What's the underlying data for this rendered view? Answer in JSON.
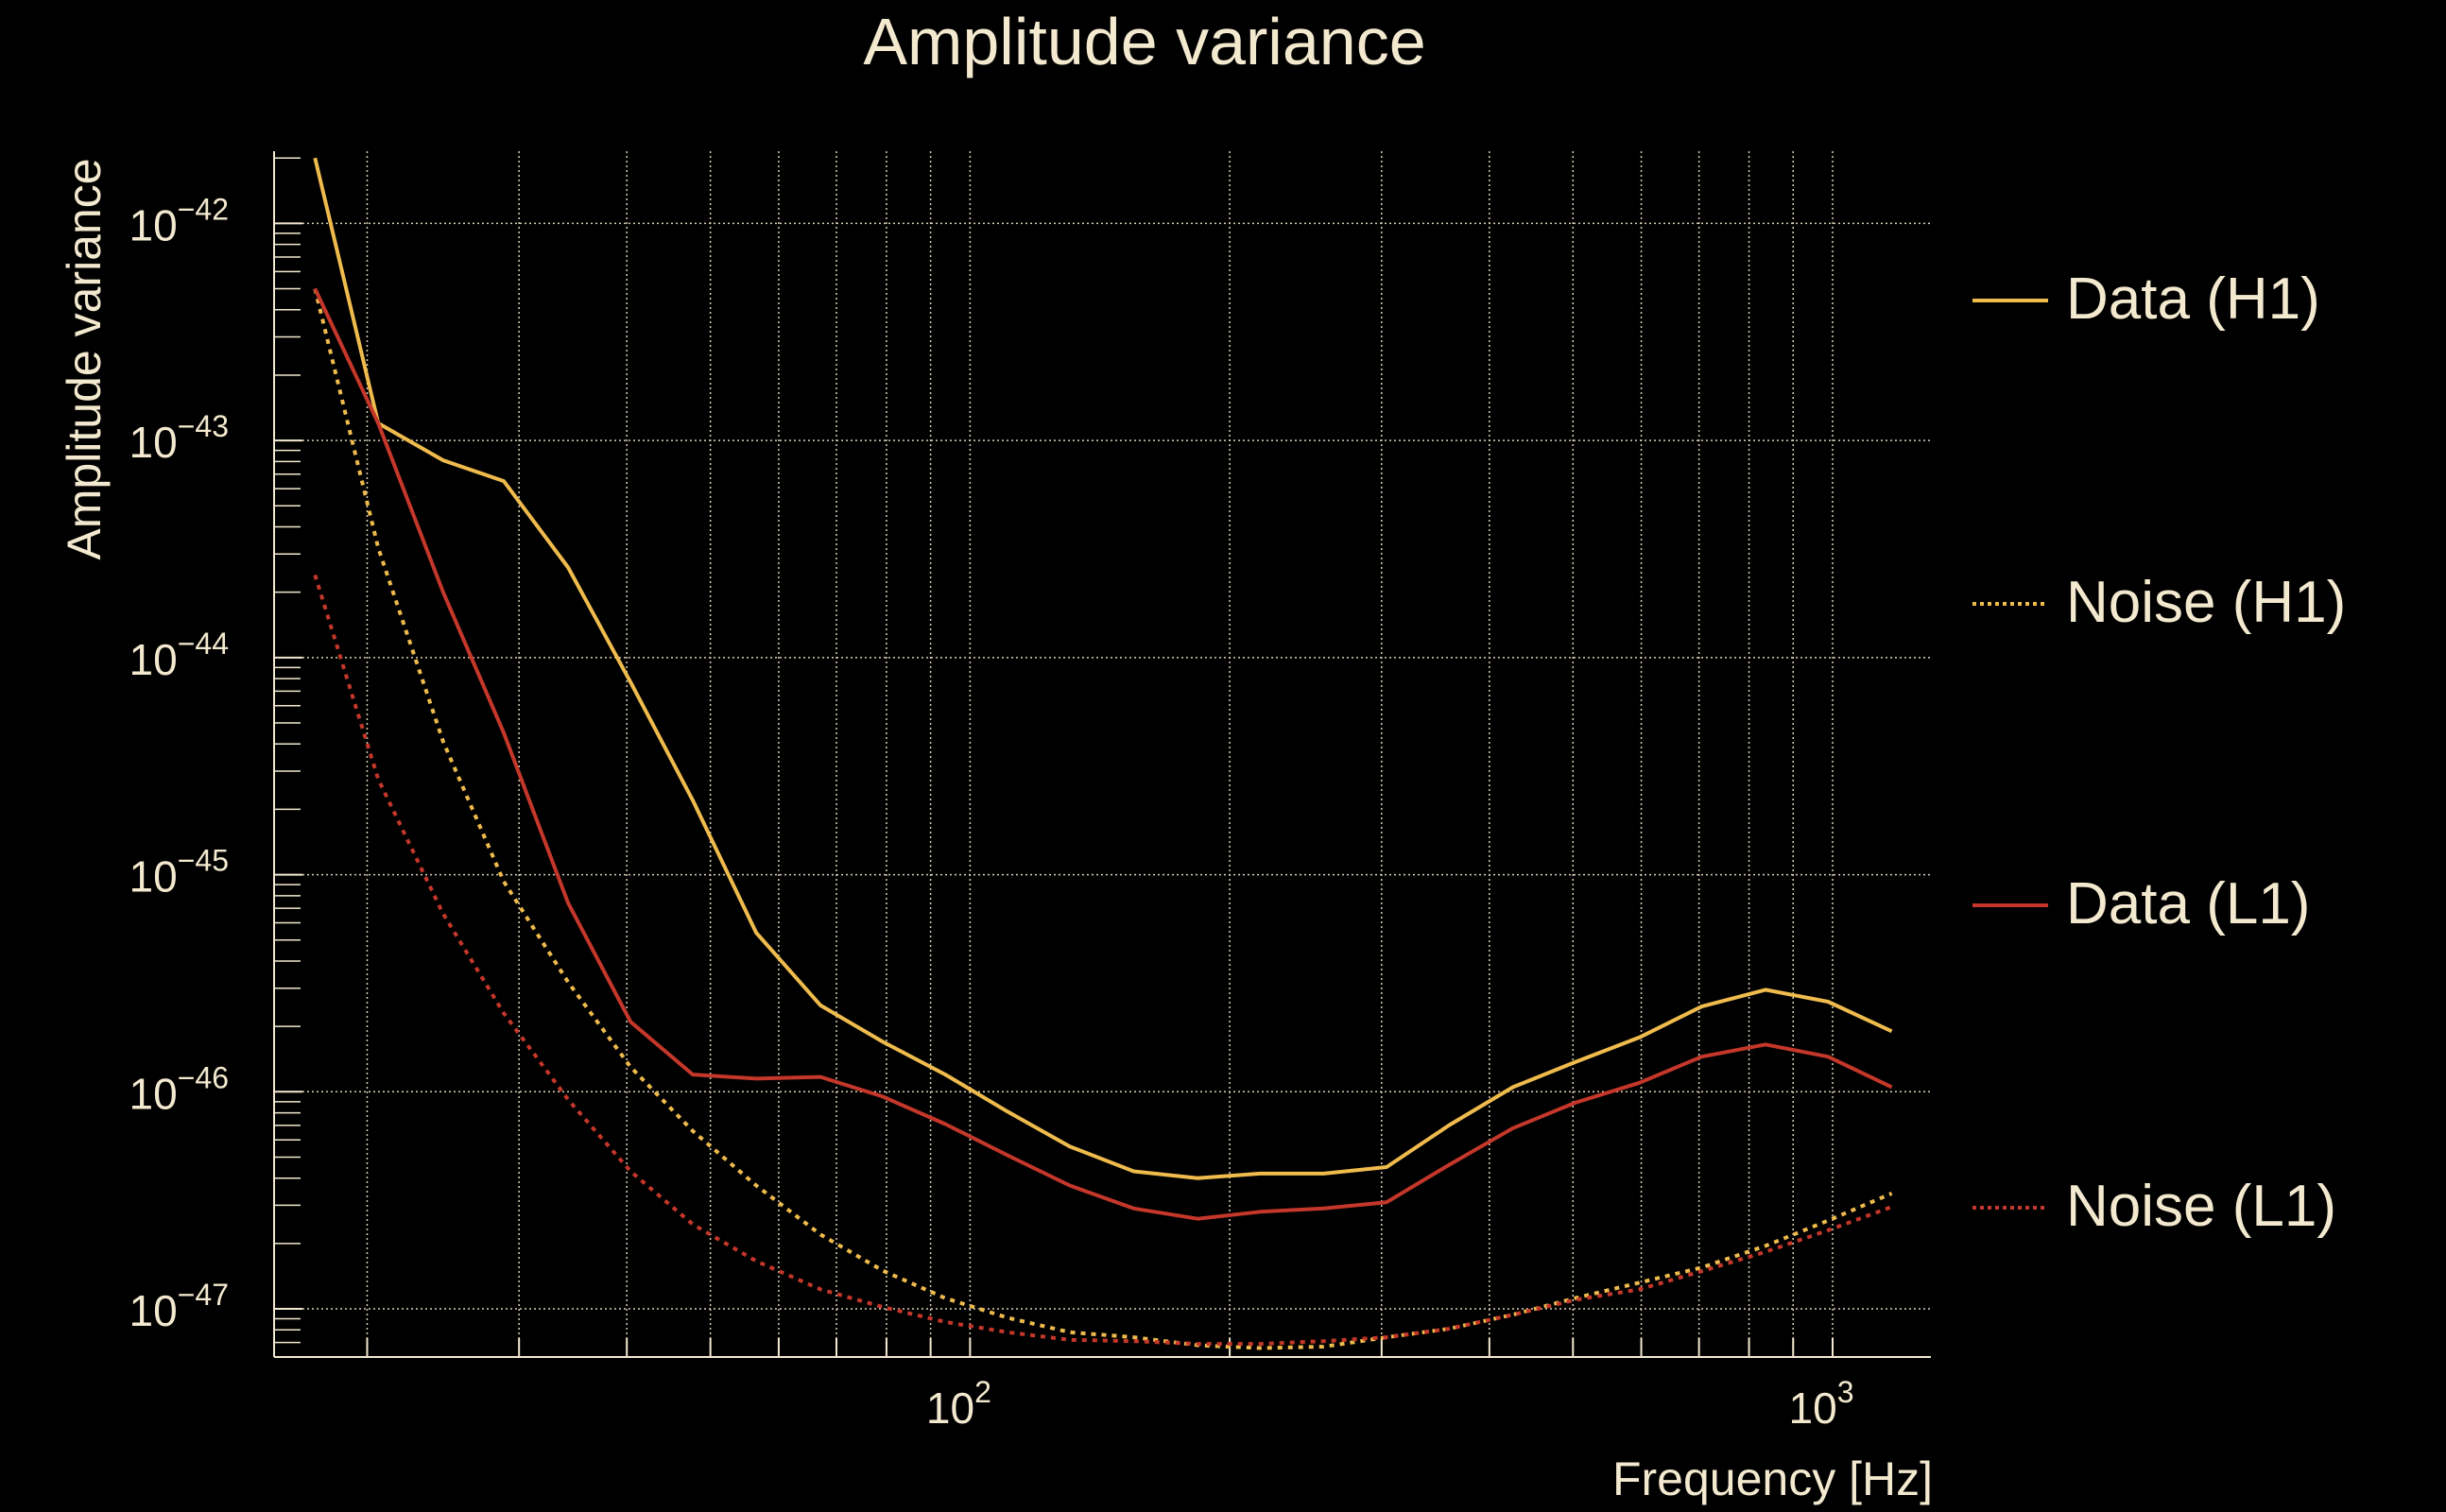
{
  "chart_data": {
    "type": "line",
    "title": "Amplitude variance",
    "xlabel": "Frequency [Hz]",
    "ylabel": "Amplitude variance",
    "xscale": "log",
    "yscale": "log",
    "xlim": [
      15.6,
      1300
    ],
    "ylim": [
      6e-48,
      2.15e-42
    ],
    "grid": true,
    "legend_position": "right",
    "x_ticks": [
      {
        "value": 100,
        "base": "10",
        "exp": "2"
      },
      {
        "value": 1000,
        "base": "10",
        "exp": "3"
      }
    ],
    "x_minor_ticks": [
      20,
      30,
      40,
      50,
      60,
      70,
      80,
      90,
      200,
      300,
      400,
      500,
      600,
      700,
      800,
      900
    ],
    "y_ticks": [
      {
        "value": 1e-42,
        "base": "10",
        "exp": "−42"
      },
      {
        "value": 1e-43,
        "base": "10",
        "exp": "−43"
      },
      {
        "value": 1e-44,
        "base": "10",
        "exp": "−44"
      },
      {
        "value": 1e-45,
        "base": "10",
        "exp": "−45"
      },
      {
        "value": 1e-46,
        "base": "10",
        "exp": "−46"
      },
      {
        "value": 1e-47,
        "base": "10",
        "exp": "−47"
      }
    ],
    "x": [
      17.4,
      20.6,
      24.5,
      28.8,
      34.2,
      40.4,
      47.7,
      56.5,
      67.1,
      79.2,
      93.6,
      110.5,
      130.5,
      154.8,
      183.7,
      217,
      257,
      304,
      359,
      426,
      503,
      597,
      705,
      836,
      988,
      1171
    ],
    "series": [
      {
        "name": "Data (H1)",
        "color": "#efbb4d",
        "style": "solid",
        "values": [
          2e-42,
          1.2e-43,
          8.1e-44,
          6.5e-44,
          2.6e-44,
          7.7e-45,
          2.2e-45,
          5.4e-46,
          2.5e-46,
          1.7e-46,
          1.2e-46,
          8.1e-47,
          5.6e-47,
          4.3e-47,
          4e-47,
          4.2e-47,
          4.2e-47,
          4.5e-47,
          7e-47,
          1.05e-46,
          1.37e-46,
          1.78e-46,
          2.47e-46,
          2.95e-46,
          2.6e-46,
          1.9e-46
        ]
      },
      {
        "name": "Noise (H1)",
        "color": "#efbb4d",
        "style": "dotted",
        "values": [
          5e-43,
          3.2e-44,
          4.1e-45,
          9.3e-46,
          3.2e-46,
          1.3e-46,
          6.6e-47,
          3.7e-47,
          2.2e-47,
          1.5e-47,
          1.12e-47,
          9.1e-48,
          7.8e-48,
          7.4e-48,
          6.8e-48,
          6.6e-48,
          6.7e-48,
          7.4e-48,
          8.1e-48,
          9.4e-48,
          1.12e-47,
          1.32e-47,
          1.55e-47,
          1.95e-47,
          2.55e-47,
          3.4e-47
        ]
      },
      {
        "name": "Data (L1)",
        "color": "#c4372a",
        "style": "solid",
        "values": [
          5e-43,
          1.2e-43,
          2e-44,
          4.5e-45,
          7.4e-46,
          2.1e-46,
          1.2e-46,
          1.15e-46,
          1.17e-46,
          9.5e-47,
          7.1e-47,
          5.1e-47,
          3.7e-47,
          2.9e-47,
          2.6e-47,
          2.8e-47,
          2.9e-47,
          3.1e-47,
          4.6e-47,
          6.8e-47,
          8.9e-47,
          1.1e-46,
          1.45e-46,
          1.65e-46,
          1.45e-46,
          1.05e-46
        ]
      },
      {
        "name": "Noise (L1)",
        "color": "#c4372a",
        "style": "dotted",
        "values": [
          2.4e-44,
          2.75e-45,
          6.6e-46,
          2.3e-46,
          9.2e-47,
          4.3e-47,
          2.45e-47,
          1.66e-47,
          1.23e-47,
          1.02e-47,
          8.7e-48,
          7.8e-48,
          7.2e-48,
          7.1e-48,
          6.9e-48,
          6.9e-48,
          7.1e-48,
          7.4e-48,
          8.1e-48,
          9.4e-48,
          1.1e-47,
          1.23e-47,
          1.49e-47,
          1.83e-47,
          2.3e-47,
          2.95e-47
        ]
      }
    ]
  }
}
